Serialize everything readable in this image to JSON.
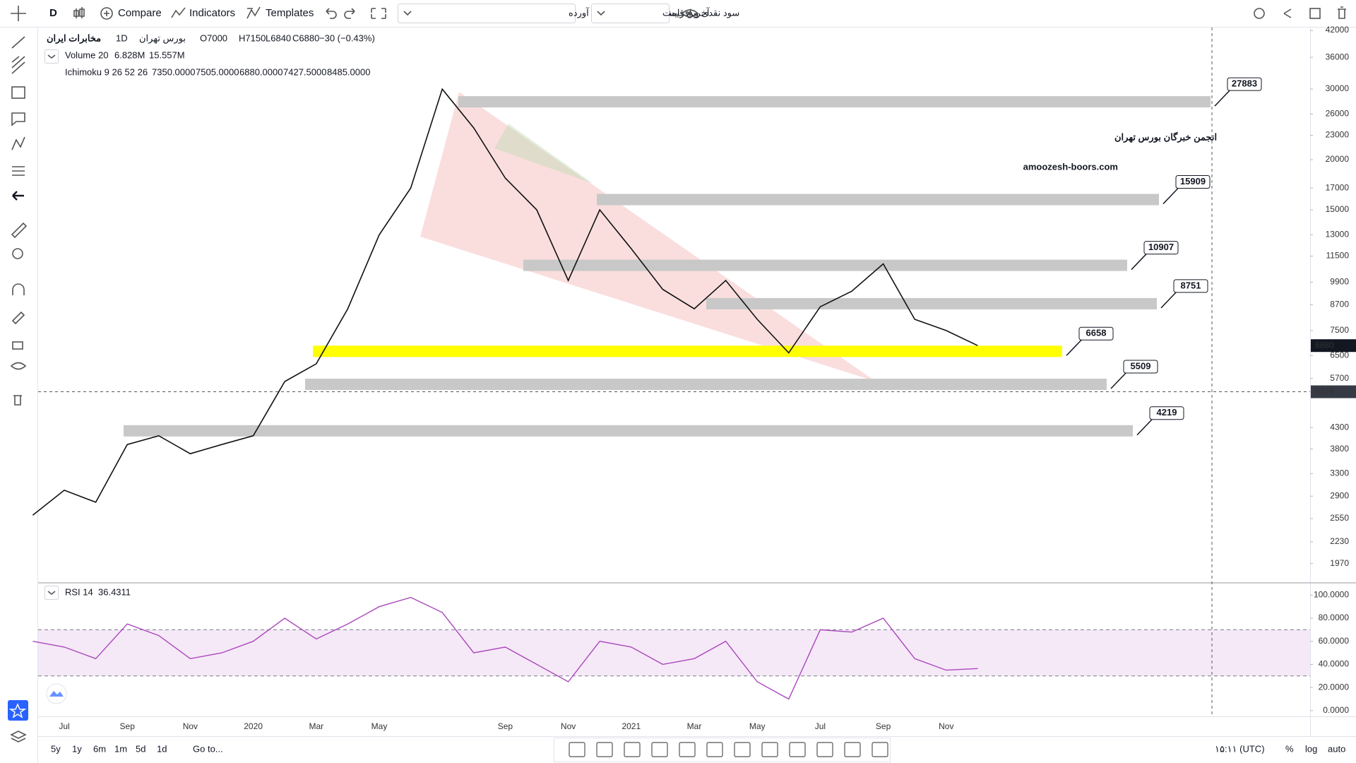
{
  "toolbar": {
    "interval": "D",
    "compare": "Compare",
    "indicators": "Indicators",
    "templates": "Templates",
    "adjustment": "سود نقدی و افزایش سرمایه با احتساب آورده",
    "price_type": "آخرین قیمت"
  },
  "legend": {
    "symbol": "مخابرات ایران",
    "interval": "1D",
    "exchange": "بورس تهران",
    "open": "O7000",
    "high": "H7150",
    "low": "L6840",
    "close": "C6880",
    "change": "−30 (−0.43%)",
    "volume": {
      "label": "Volume 20",
      "values": [
        {
          "text": "6.828M",
          "color": "#e0413a"
        },
        {
          "text": "15.557M",
          "color": "#2196f3"
        }
      ]
    },
    "ichimoku": {
      "label": "Ichimoku 9 26 52 26",
      "values": [
        {
          "text": "7350.0000",
          "color": "#2196f3"
        },
        {
          "text": "7505.0000",
          "color": "#b71c1c"
        },
        {
          "text": "6880.0000",
          "color": "#43a047"
        },
        {
          "text": "7427.5000",
          "color": "#2e7d32"
        },
        {
          "text": "8485.0000",
          "color": "#e53935"
        }
      ]
    },
    "rsi": {
      "label": "RSI 14",
      "value": "36.4311"
    }
  },
  "watermark": {
    "title": "انجمن خبرگان بورس تهران",
    "site": "amoozesh-boors.com"
  },
  "bottom_bar": {
    "ranges": [
      "5y",
      "1y",
      "6m",
      "1m",
      "5d",
      "1d"
    ],
    "goto": "Go to...",
    "time": "۱۵:۱۱ (UTC)",
    "percent": "%",
    "log": "log",
    "auto": "auto"
  },
  "chart_data": [
    {
      "type": "line",
      "color": "#111111",
      "log_scale": true,
      "grid": false,
      "categories": [
        null,
        "Jul",
        null,
        "Sep",
        null,
        "Nov",
        null,
        "2020",
        null,
        "Mar",
        null,
        "May",
        null,
        null,
        null,
        "Sep",
        null,
        "Nov",
        null,
        "2021",
        null,
        "Mar",
        null,
        "May",
        null,
        "Jul",
        null,
        "Sep",
        null,
        "Nov",
        null
      ],
      "values": [
        2600,
        3000,
        2800,
        3900,
        4100,
        3700,
        3900,
        4100,
        5600,
        6200,
        8500,
        13000,
        17000,
        30000,
        24000,
        18000,
        15000,
        10000,
        15000,
        12000,
        9500,
        8500,
        10000,
        8000,
        6600,
        8600,
        9400,
        11000,
        8000,
        7500,
        6880
      ],
      "ylim": [
        1770,
        42700
      ],
      "yticks": [
        42000,
        36000,
        30000,
        26000,
        23000,
        20000,
        17000,
        15000,
        13000,
        11500,
        9900,
        8700,
        7500,
        6500,
        5700,
        4300,
        3800,
        3300,
        2900,
        2550,
        2230,
        1970
      ],
      "levels": [
        {
          "value": 27883,
          "color": "#c8c8c8"
        },
        {
          "value": 15909,
          "color": "#c8c8c8"
        },
        {
          "value": 10907,
          "color": "#c8c8c8"
        },
        {
          "value": 8751,
          "color": "#c8c8c8"
        },
        {
          "value": 6658,
          "color": "#ffff00"
        },
        {
          "value": 5509,
          "color": "#c8c8c8"
        },
        {
          "value": 4219,
          "color": "#c8c8c8"
        }
      ],
      "last_price": 6880,
      "crosshair_price": 5279
    },
    {
      "type": "line",
      "color": "#ab47bc",
      "values": [
        60,
        55,
        45,
        75,
        65,
        45,
        50,
        60,
        80,
        62,
        75,
        90,
        98,
        85,
        50,
        55,
        40,
        25,
        60,
        55,
        40,
        45,
        60,
        25,
        10,
        70,
        68,
        80,
        45,
        35,
        36.4311
      ],
      "ylim": [
        -5,
        110
      ],
      "band": [
        30,
        70
      ],
      "yticks": [
        {
          "value": 100,
          "label": "100.0000"
        },
        {
          "value": 80,
          "label": "80.0000"
        },
        {
          "value": 60,
          "label": "60.0000"
        },
        {
          "value": 40,
          "label": "40.0000"
        },
        {
          "value": 20,
          "label": "20.0000"
        },
        {
          "value": 0,
          "label": "0.0000"
        }
      ]
    }
  ]
}
